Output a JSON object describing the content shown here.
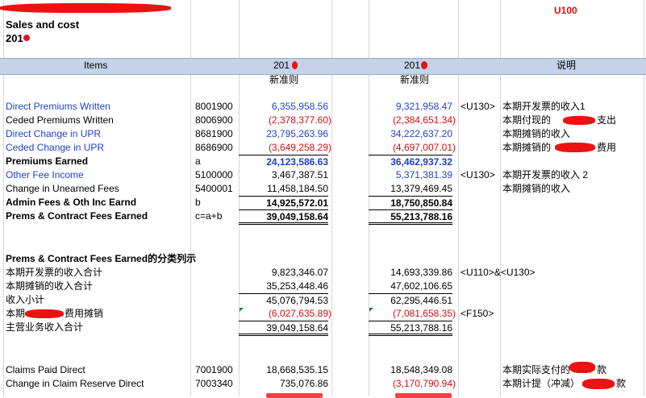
{
  "top_code": "U100",
  "title": "Sales and cost",
  "year_prefix": "201",
  "header": {
    "items": "Items",
    "y1": "201",
    "y2": "201",
    "note": "说明",
    "y1_sub": "新准则",
    "y2_sub": "新准则"
  },
  "rows": [
    {
      "label": "Direct Premiums Written",
      "code": "8001900",
      "v1": "6,355,958.56",
      "v2": "9,321,958.47",
      "ref": "<U130>",
      "note": "本期开发票的收入1"
    },
    {
      "label": "Ceded Premiums Written",
      "code": "8006900",
      "v1": "(2,378,377.60)",
      "v2": "(2,384,651.34)",
      "ref": "",
      "note": "本期付现的"
    },
    {
      "label": "Direct Change in UPR",
      "code": "8681900",
      "v1": "23,795,263.96",
      "v2": "34,222,637.20",
      "ref": "",
      "note": "本期摊销的收入"
    },
    {
      "label": "Ceded Change in UPR",
      "code": "8686900",
      "v1": "(3,649,258.29)",
      "v2": "(4,697,007.01)",
      "ref": "",
      "note": "本期摊销的"
    },
    {
      "label": "Premiums Earned",
      "code": "a",
      "v1": "24,123,586.63",
      "v2": "36,462,937.32",
      "ref": "",
      "note": ""
    },
    {
      "label": "Other Fee Income",
      "code": "5100000",
      "v1": "3,467,387.51",
      "v2": "5,371,381.39",
      "ref": "<U130>",
      "note": "本期开发票的收入 2"
    },
    {
      "label": "Change in Unearned Fees",
      "code": "5400001",
      "v1": "11,458,184.50",
      "v2": "13,379,469.45",
      "ref": "",
      "note": "本期摊销的收入"
    },
    {
      "label": "Admin Fees & Oth Inc Earnd",
      "code": "b",
      "v1": "14,925,572.01",
      "v2": "18,750,850.84",
      "ref": "",
      "note": ""
    },
    {
      "label": "Prems & Contract Fees Earned",
      "code": "c=a+b",
      "v1": "39,049,158.64",
      "v2": "55,213,788.16",
      "ref": "",
      "note": ""
    }
  ],
  "note_suffix_1": "支出",
  "note_suffix_3": "费用",
  "section2_title": "Prems & Contract Fees Earned的分类列示",
  "rows2": [
    {
      "label": "本期开发票的收入合计",
      "v1": "9,823,346.07",
      "v2": "14,693,339.86",
      "ref": "<U110>&<U130>"
    },
    {
      "label": "本期摊销的收入合计",
      "v1": "35,253,448.46",
      "v2": "47,602,106.65",
      "ref": ""
    },
    {
      "label": "收入小计",
      "v1": "45,076,794.53",
      "v2": "62,295,446.51",
      "ref": ""
    },
    {
      "label": "本期",
      "label_suffix": "费用摊销",
      "v1": "(6,027,635.89)",
      "v2": "(7,081,658.35)",
      "ref": "<F150>"
    },
    {
      "label": "主营业务收入合计",
      "v1": "39,049,158.64",
      "v2": "55,213,788.16",
      "ref": ""
    }
  ],
  "rows3": [
    {
      "label": "Claims Paid Direct",
      "code": "7001900",
      "v1": "18,668,535.15",
      "v2": "18,548,349.08",
      "note": "本期实际支付的",
      "note_suffix": "款"
    },
    {
      "label": "Change in Claim Reserve Direct",
      "code": "7003340",
      "v1": "735,076.86",
      "v2": "(3,170,790.94)",
      "note": "本期计提（冲减）",
      "note_suffix": "款"
    }
  ],
  "colors": {
    "blue": "#1f3fd0",
    "red": "#d01010",
    "header_band": "#c5d2e8",
    "redaction": "#ee1111"
  }
}
